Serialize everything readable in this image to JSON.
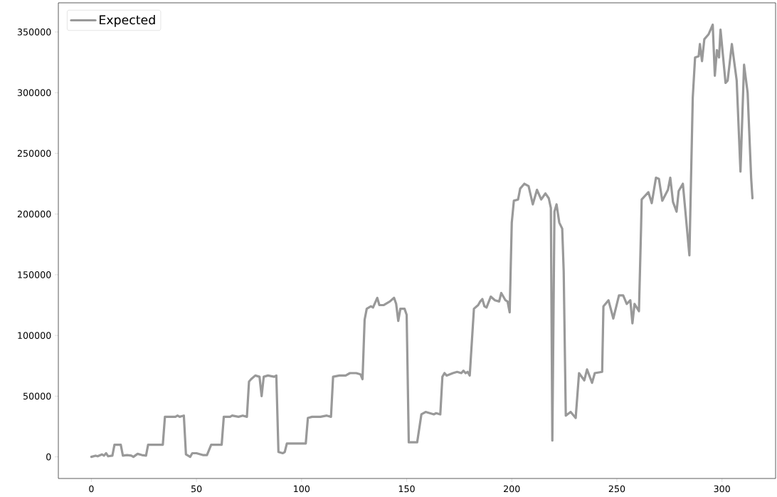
{
  "chart_data": {
    "type": "line",
    "series": [
      {
        "name": "Expected",
        "color": "#999999",
        "x": [
          0,
          2,
          3,
          5,
          6,
          7,
          8,
          10,
          11,
          14,
          15,
          17,
          19,
          20,
          22,
          24,
          26,
          27,
          34,
          35,
          40,
          41,
          42,
          44,
          45,
          47,
          48,
          50,
          53,
          55,
          57,
          62,
          63,
          66,
          67,
          70,
          72,
          74,
          75,
          76,
          78,
          80,
          81,
          82,
          84,
          87,
          88,
          89,
          91,
          92,
          93,
          102,
          103,
          105,
          109,
          112,
          114,
          115,
          118,
          121,
          123,
          126,
          128,
          129,
          130,
          131,
          133,
          134,
          136,
          137,
          139,
          142,
          144,
          145,
          146,
          147,
          149,
          150,
          151,
          155,
          157,
          159,
          161,
          163,
          164,
          166,
          167,
          168,
          169,
          172,
          174,
          176,
          177,
          178,
          179,
          180,
          182,
          184,
          185,
          186,
          187,
          188,
          190,
          192,
          194,
          195,
          197,
          198,
          199,
          200,
          201,
          203,
          204,
          206,
          208,
          210,
          212,
          214,
          216,
          217.6,
          218.6,
          219.3,
          220.3,
          221.3,
          222.6,
          224,
          224.7,
          225.7,
          228,
          230.4,
          232,
          234.5,
          235.8,
          238.2,
          239.5,
          243,
          243.6,
          246,
          248.3,
          251,
          253,
          254.7,
          256.4,
          257.4,
          258.4,
          260.5,
          261.5,
          261.8,
          265,
          266.6,
          268.6,
          270,
          271.6,
          274.3,
          275.4,
          276.7,
          278.4,
          279.4,
          281.4,
          284.5,
          286.1,
          287.2,
          288.9,
          289.5,
          290.5,
          291.6,
          293.6,
          295.6,
          296.6,
          297.6,
          298.6,
          299.3,
          301.7,
          302.7,
          304.7,
          307,
          308.8,
          310.5,
          312.2,
          313.9,
          314.5
        ],
        "values": [
          0,
          1000,
          500,
          2000,
          1000,
          3000,
          500,
          1000,
          10000,
          10000,
          1000,
          1500,
          1000,
          0,
          2500,
          1500,
          1000,
          10000,
          10000,
          33000,
          33000,
          34000,
          33000,
          34000,
          2000,
          0,
          3000,
          3000,
          1500,
          1500,
          10000,
          10000,
          33000,
          33000,
          34000,
          33000,
          34000,
          33000,
          62000,
          64000,
          67000,
          66000,
          50000,
          66000,
          67000,
          66000,
          67000,
          4000,
          3000,
          4000,
          11000,
          11000,
          32000,
          33000,
          33000,
          34000,
          33000,
          66000,
          67000,
          67000,
          69000,
          69000,
          68000,
          64000,
          113000,
          122000,
          124000,
          123000,
          131000,
          125000,
          125000,
          128000,
          131000,
          126000,
          112000,
          122000,
          122000,
          117000,
          12000,
          12000,
          35000,
          37000,
          36000,
          35000,
          36000,
          35000,
          66000,
          69000,
          67000,
          69000,
          70000,
          69000,
          71000,
          69000,
          70000,
          67000,
          122000,
          125000,
          128000,
          130000,
          124000,
          123000,
          132000,
          129000,
          128000,
          135000,
          129000,
          128000,
          119000,
          193000,
          211000,
          212000,
          221000,
          225000,
          223000,
          208000,
          220000,
          212000,
          217000,
          213000,
          205000,
          13500,
          202000,
          208000,
          193000,
          188000,
          153000,
          34000,
          37000,
          32000,
          69000,
          63000,
          72000,
          61000,
          69000,
          70000,
          124000,
          129000,
          114000,
          133000,
          133000,
          126000,
          129000,
          110000,
          126000,
          120000,
          188000,
          212000,
          218000,
          209000,
          230000,
          229000,
          211000,
          220000,
          230000,
          210000,
          202000,
          219000,
          225000,
          166000,
          296000,
          329000,
          330000,
          340000,
          326000,
          344000,
          348000,
          356000,
          314000,
          335000,
          329000,
          352000,
          308000,
          310000,
          340000,
          310000,
          235000,
          323000,
          300000,
          229000,
          213000
        ]
      }
    ],
    "xlim": [
      -15.7,
      325.5
    ],
    "ylim": [
      -17800,
      374000
    ],
    "xticks": [
      0,
      50,
      100,
      150,
      200,
      250,
      300
    ],
    "yticks": [
      0,
      50000,
      100000,
      150000,
      200000,
      250000,
      300000,
      350000
    ],
    "grid": false,
    "legend": "top left",
    "marker": "none",
    "line_style": "solid"
  }
}
